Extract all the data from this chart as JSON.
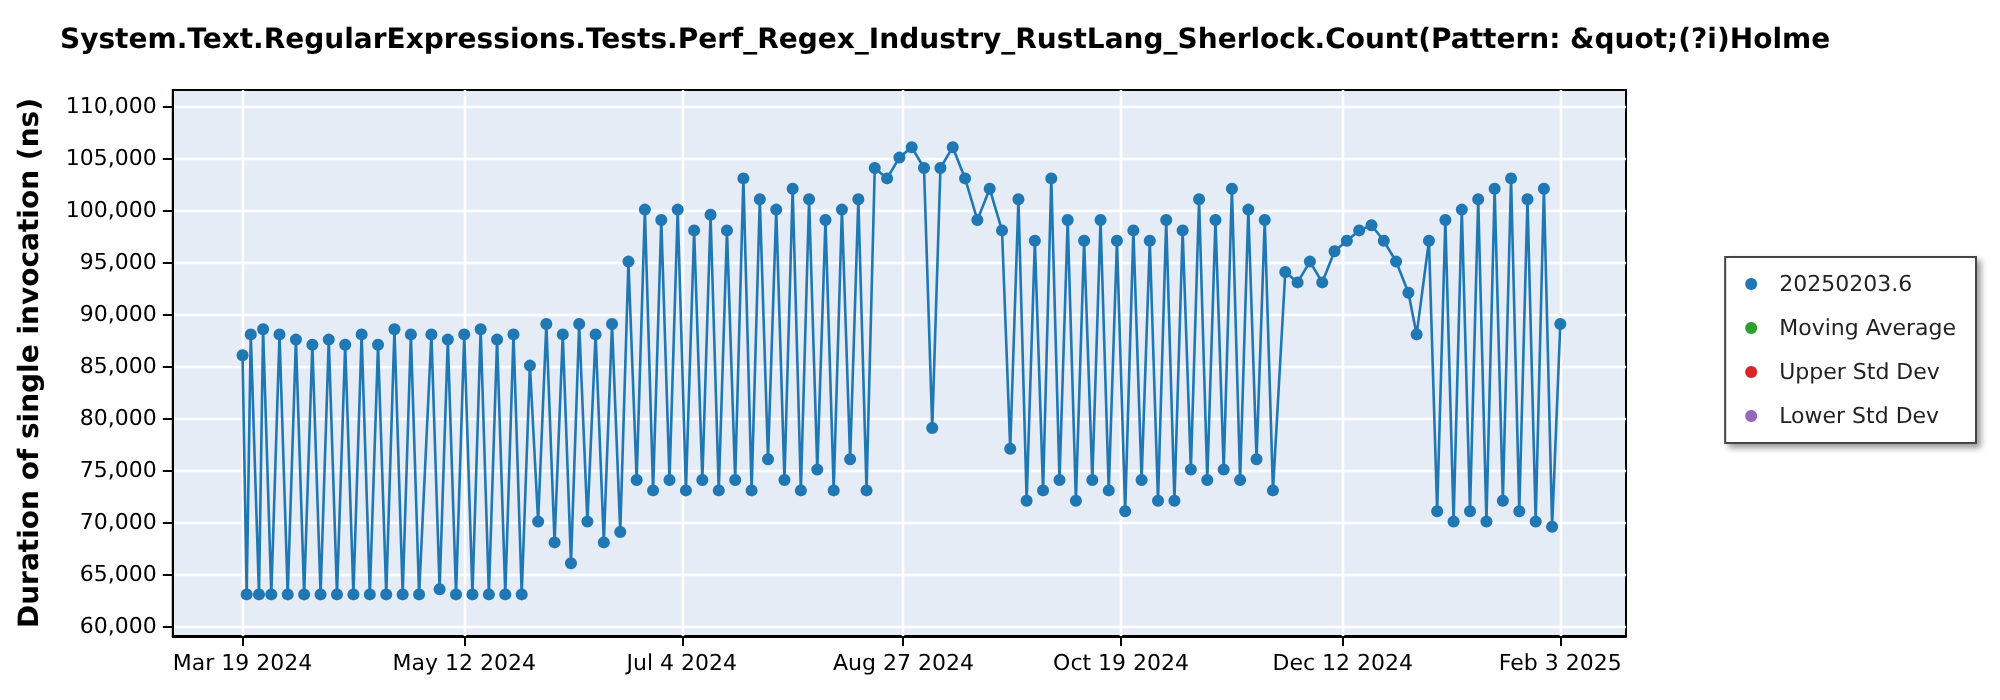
{
  "chart_data": {
    "type": "line",
    "title": "System.Text.RegularExpressions.Tests.Perf_Regex_Industry_RustLang_Sherlock.Count(Pattern: &quot;(?i)Holme",
    "ylabel": "Duration of single invocation (ns)",
    "x": [
      "2024-03-19",
      "2024-03-20",
      "2024-03-21",
      "2024-03-23",
      "2024-03-24",
      "2024-03-26",
      "2024-03-28",
      "2024-03-30",
      "2024-04-01",
      "2024-04-03",
      "2024-04-05",
      "2024-04-07",
      "2024-04-09",
      "2024-04-11",
      "2024-04-13",
      "2024-04-15",
      "2024-04-17",
      "2024-04-19",
      "2024-04-21",
      "2024-04-23",
      "2024-04-25",
      "2024-04-27",
      "2024-04-29",
      "2024-05-01",
      "2024-05-04",
      "2024-05-06",
      "2024-05-08",
      "2024-05-10",
      "2024-05-12",
      "2024-05-14",
      "2024-05-16",
      "2024-05-18",
      "2024-05-20",
      "2024-05-22",
      "2024-05-24",
      "2024-05-26",
      "2024-05-28",
      "2024-05-30",
      "2024-06-01",
      "2024-06-03",
      "2024-06-05",
      "2024-06-07",
      "2024-06-09",
      "2024-06-11",
      "2024-06-13",
      "2024-06-15",
      "2024-06-17",
      "2024-06-19",
      "2024-06-21",
      "2024-06-23",
      "2024-06-25",
      "2024-06-27",
      "2024-06-29",
      "2024-07-01",
      "2024-07-03",
      "2024-07-05",
      "2024-07-07",
      "2024-07-09",
      "2024-07-11",
      "2024-07-13",
      "2024-07-15",
      "2024-07-17",
      "2024-07-19",
      "2024-07-21",
      "2024-07-23",
      "2024-07-25",
      "2024-07-27",
      "2024-07-29",
      "2024-07-31",
      "2024-08-02",
      "2024-08-04",
      "2024-08-06",
      "2024-08-08",
      "2024-08-10",
      "2024-08-12",
      "2024-08-14",
      "2024-08-16",
      "2024-08-18",
      "2024-08-20",
      "2024-08-23",
      "2024-08-26",
      "2024-08-29",
      "2024-09-01",
      "2024-09-03",
      "2024-09-05",
      "2024-09-08",
      "2024-09-11",
      "2024-09-14",
      "2024-09-17",
      "2024-09-20",
      "2024-09-22",
      "2024-09-24",
      "2024-09-26",
      "2024-09-28",
      "2024-09-30",
      "2024-10-02",
      "2024-10-04",
      "2024-10-06",
      "2024-10-08",
      "2024-10-10",
      "2024-10-12",
      "2024-10-14",
      "2024-10-16",
      "2024-10-18",
      "2024-10-20",
      "2024-10-22",
      "2024-10-24",
      "2024-10-26",
      "2024-10-28",
      "2024-10-30",
      "2024-11-01",
      "2024-11-03",
      "2024-11-05",
      "2024-11-07",
      "2024-11-09",
      "2024-11-11",
      "2024-11-13",
      "2024-11-15",
      "2024-11-17",
      "2024-11-19",
      "2024-11-21",
      "2024-11-23",
      "2024-11-25",
      "2024-11-28",
      "2024-12-01",
      "2024-12-04",
      "2024-12-07",
      "2024-12-10",
      "2024-12-13",
      "2024-12-16",
      "2024-12-19",
      "2024-12-22",
      "2024-12-25",
      "2024-12-28",
      "2024-12-30",
      "2025-01-02",
      "2025-01-04",
      "2025-01-06",
      "2025-01-08",
      "2025-01-10",
      "2025-01-12",
      "2025-01-14",
      "2025-01-16",
      "2025-01-18",
      "2025-01-20",
      "2025-01-22",
      "2025-01-24",
      "2025-01-26",
      "2025-01-28",
      "2025-01-30",
      "2025-02-01",
      "2025-02-03"
    ],
    "series": [
      {
        "name": "20250203.6",
        "color": "#1f77b4",
        "values": [
          86000,
          63000,
          88000,
          63000,
          88500,
          63000,
          88000,
          63000,
          87500,
          63000,
          87000,
          63000,
          87500,
          63000,
          87000,
          63000,
          88000,
          63000,
          87000,
          63000,
          88500,
          63000,
          88000,
          63000,
          88000,
          63500,
          87500,
          63000,
          88000,
          63000,
          88500,
          63000,
          87500,
          63000,
          88000,
          63000,
          85000,
          70000,
          89000,
          68000,
          88000,
          66000,
          89000,
          70000,
          88000,
          68000,
          89000,
          69000,
          95000,
          74000,
          100000,
          73000,
          99000,
          74000,
          100000,
          73000,
          98000,
          74000,
          99500,
          73000,
          98000,
          74000,
          103000,
          73000,
          101000,
          76000,
          100000,
          74000,
          102000,
          73000,
          101000,
          75000,
          99000,
          73000,
          100000,
          76000,
          101000,
          73000,
          104000,
          103000,
          105000,
          106000,
          104000,
          79000,
          104000,
          106000,
          103000,
          99000,
          102000,
          98000,
          77000,
          101000,
          72000,
          97000,
          73000,
          103000,
          74000,
          99000,
          72000,
          97000,
          74000,
          99000,
          73000,
          97000,
          71000,
          98000,
          74000,
          97000,
          72000,
          99000,
          72000,
          98000,
          75000,
          101000,
          74000,
          99000,
          75000,
          102000,
          74000,
          100000,
          76000,
          99000,
          73000,
          94000,
          93000,
          95000,
          93000,
          96000,
          97000,
          98000,
          98500,
          97000,
          95000,
          92000,
          88000,
          97000,
          71000,
          99000,
          70000,
          100000,
          71000,
          101000,
          70000,
          102000,
          72000,
          103000,
          71000,
          101000,
          70000,
          102000,
          69500,
          89000
        ]
      },
      {
        "name": "Moving Average",
        "color": "#2ca02c",
        "values": [
          null,
          null,
          null,
          null,
          null,
          null,
          null,
          null,
          null,
          null,
          null,
          null,
          null,
          null,
          null,
          null,
          null,
          null,
          null,
          null,
          null,
          null,
          null,
          null,
          null,
          null,
          null,
          null,
          null,
          null,
          null,
          null,
          null,
          null,
          null,
          null,
          null,
          null,
          null,
          null,
          null,
          null,
          null,
          null,
          null,
          null,
          null,
          null,
          null,
          null,
          null,
          null,
          null,
          null,
          null,
          null,
          null,
          null,
          null,
          null,
          null,
          null,
          null,
          null,
          null,
          null,
          null,
          null,
          null,
          null,
          null,
          null,
          null,
          null,
          null,
          null,
          null,
          null,
          null,
          null,
          null,
          null,
          null,
          null,
          null,
          null,
          null,
          null,
          null,
          null,
          null,
          null,
          null,
          null,
          null,
          null,
          null,
          null,
          null,
          null,
          null,
          null,
          null,
          null,
          null,
          null,
          null,
          null,
          null,
          null,
          null,
          null,
          null,
          null,
          null,
          null,
          null,
          null,
          null,
          null,
          null,
          null,
          null,
          null,
          null,
          null,
          null,
          null,
          null,
          null,
          null,
          null,
          null,
          null,
          null,
          null,
          null,
          null,
          null,
          null,
          null,
          null,
          null,
          null,
          null,
          null,
          null,
          null,
          null,
          null,
          null,
          null
        ]
      },
      {
        "name": "Upper Std Dev",
        "color": "#d62728",
        "values": [
          null,
          null,
          null,
          null,
          null,
          null,
          null,
          null,
          null,
          null,
          null,
          null,
          null,
          null,
          null,
          null,
          null,
          null,
          null,
          null,
          null,
          null,
          null,
          null,
          null,
          null,
          null,
          null,
          null,
          null,
          null,
          null,
          null,
          null,
          null,
          null,
          null,
          null,
          null,
          null,
          null,
          null,
          null,
          null,
          null,
          null,
          null,
          null,
          null,
          null,
          null,
          null,
          null,
          null,
          null,
          null,
          null,
          null,
          null,
          null,
          null,
          null,
          null,
          null,
          null,
          null,
          null,
          null,
          null,
          null,
          null,
          null,
          null,
          null,
          null,
          null,
          null,
          null,
          null,
          null,
          null,
          null,
          null,
          null,
          null,
          null,
          null,
          null,
          null,
          null,
          null,
          null,
          null,
          null,
          null,
          null,
          null,
          null,
          null,
          null,
          null,
          null,
          null,
          null,
          null,
          null,
          null,
          null,
          null,
          null,
          null,
          null,
          null,
          null,
          null,
          null,
          null,
          null,
          null,
          null,
          null,
          null,
          null,
          null,
          null,
          null,
          null,
          null,
          null,
          null,
          null,
          null,
          null,
          null,
          null,
          null,
          null,
          null,
          null,
          null,
          null,
          null,
          null,
          null,
          null,
          null,
          null,
          null,
          null,
          null,
          null,
          null
        ]
      },
      {
        "name": "Lower Std Dev",
        "color": "#9467bd",
        "values": [
          null,
          null,
          null,
          null,
          null,
          null,
          null,
          null,
          null,
          null,
          null,
          null,
          null,
          null,
          null,
          null,
          null,
          null,
          null,
          null,
          null,
          null,
          null,
          null,
          null,
          null,
          null,
          null,
          null,
          null,
          null,
          null,
          null,
          null,
          null,
          null,
          null,
          null,
          null,
          null,
          null,
          null,
          null,
          null,
          null,
          null,
          null,
          null,
          null,
          null,
          null,
          null,
          null,
          null,
          null,
          null,
          null,
          null,
          null,
          null,
          null,
          null,
          null,
          null,
          null,
          null,
          null,
          null,
          null,
          null,
          null,
          null,
          null,
          null,
          null,
          null,
          null,
          null,
          null,
          null,
          null,
          null,
          null,
          null,
          null,
          null,
          null,
          null,
          null,
          null,
          null,
          null,
          null,
          null,
          null,
          null,
          null,
          null,
          null,
          null,
          null,
          null,
          null,
          null,
          null,
          null,
          null,
          null,
          null,
          null,
          null,
          null,
          null,
          null,
          null,
          null,
          null,
          null,
          null,
          null,
          null,
          null,
          null,
          null,
          null,
          null,
          null,
          null,
          null,
          null,
          null,
          null,
          null,
          null,
          null,
          null,
          null,
          null,
          null,
          null,
          null,
          null,
          null,
          null,
          null,
          null,
          null,
          null,
          null,
          null,
          null,
          null
        ]
      }
    ],
    "xlim": [
      "2024-03-02",
      "2025-02-19"
    ],
    "xticks": [
      {
        "value": "2024-03-19",
        "label": "Mar 19 2024"
      },
      {
        "value": "2024-05-12",
        "label": "May 12 2024"
      },
      {
        "value": "2024-07-04",
        "label": "Jul 4 2024"
      },
      {
        "value": "2024-08-27",
        "label": "Aug 27 2024"
      },
      {
        "value": "2024-10-19",
        "label": "Oct 19 2024"
      },
      {
        "value": "2024-12-12",
        "label": "Dec 12 2024"
      },
      {
        "value": "2025-02-03",
        "label": "Feb 3 2025"
      }
    ],
    "ylim": [
      59000,
      111500
    ],
    "yticks": [
      {
        "value": 60000,
        "label": "60,000"
      },
      {
        "value": 65000,
        "label": "65,000"
      },
      {
        "value": 70000,
        "label": "70,000"
      },
      {
        "value": 75000,
        "label": "75,000"
      },
      {
        "value": 80000,
        "label": "80,000"
      },
      {
        "value": 85000,
        "label": "85,000"
      },
      {
        "value": 90000,
        "label": "90,000"
      },
      {
        "value": 95000,
        "label": "95,000"
      },
      {
        "value": 100000,
        "label": "100,000"
      },
      {
        "value": 105000,
        "label": "105,000"
      },
      {
        "value": 110000,
        "label": "110,000"
      }
    ],
    "grid": true,
    "legend": "right",
    "marker": "circle",
    "line_style": "solid"
  }
}
